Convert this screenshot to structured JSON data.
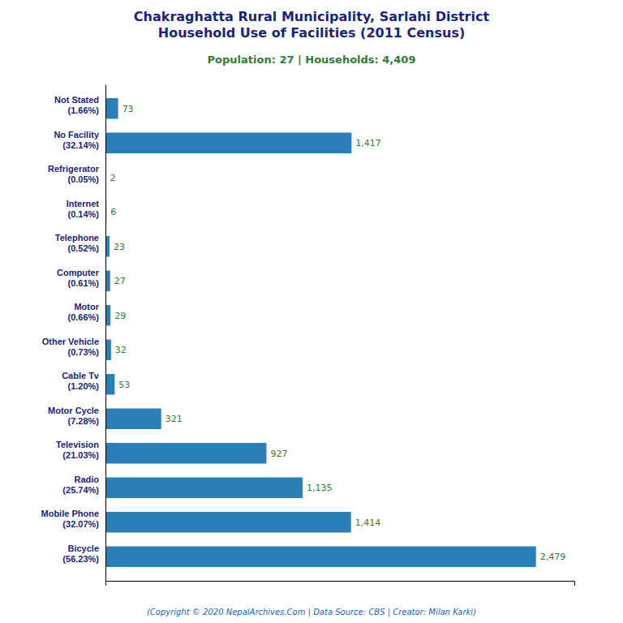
{
  "chart_data": {
    "type": "bar",
    "orientation": "horizontal",
    "title": "Chakraghatta Rural Municipality, Sarlahi District\nHousehold Use of Facilities (2011 Census)",
    "subtitle": "Population: 27 | Households: 4,409",
    "annotations": [
      "(Copyright © 2020 NepalArchives.Com | Data Source: CBS | Creator: Milan Karki)"
    ],
    "categories": [
      "Not Stated\n(1.66%)",
      "No Facility\n(32.14%)",
      "Refrigerator\n(0.05%)",
      "Internet\n(0.14%)",
      "Telephone\n(0.52%)",
      "Computer\n(0.61%)",
      "Motor\n(0.66%)",
      "Other Vehicle\n(0.73%)",
      "Cable Tv\n(1.20%)",
      "Motor Cycle\n(7.28%)",
      "Television\n(21.03%)",
      "Radio\n(25.74%)",
      "Mobile Phone\n(32.07%)",
      "Bicycle\n(56.23%)"
    ],
    "values": [
      73,
      1417,
      2,
      6,
      23,
      27,
      29,
      32,
      53,
      321,
      927,
      1135,
      1414,
      2479
    ],
    "value_labels": [
      "73",
      "1,417",
      "2",
      "6",
      "23",
      "27",
      "29",
      "32",
      "53",
      "321",
      "927",
      "1,135",
      "1,414",
      "2,479"
    ],
    "color": "#2980b9",
    "xlim": [
      0,
      2700
    ],
    "data_labels": true,
    "tick_labels": "y",
    "grid": false
  }
}
